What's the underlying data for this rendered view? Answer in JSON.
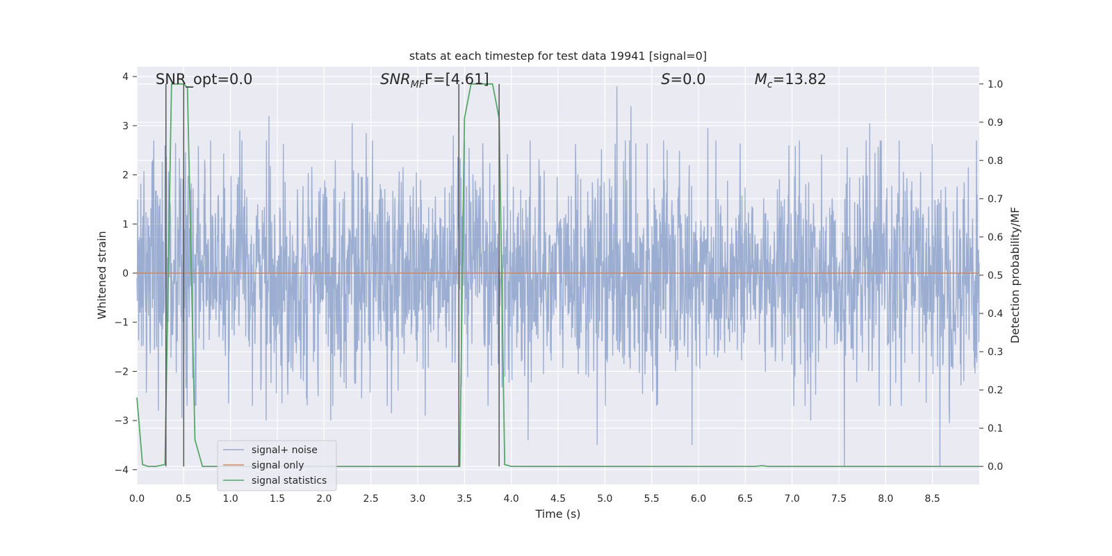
{
  "chart_data": {
    "type": "line",
    "title": "stats at each timestep for test data 19941 [signal=0]",
    "xlabel": "Time (s)",
    "ylabel": "Whitened strain",
    "y2label": "Detection probability/MF",
    "xlim": [
      0,
      9.0
    ],
    "ylim": [
      -4.3,
      4.2
    ],
    "y2lim": [
      -0.047,
      1.045
    ],
    "x_ticks": [
      "0.0",
      "0.5",
      "1.0",
      "1.5",
      "2.0",
      "2.5",
      "3.0",
      "3.5",
      "4.0",
      "4.5",
      "5.0",
      "5.5",
      "6.0",
      "6.5",
      "7.0",
      "7.5",
      "8.0",
      "8.5"
    ],
    "y_ticks": [
      "4",
      "3",
      "2",
      "1",
      "0",
      "−1",
      "−2",
      "−3",
      "−4"
    ],
    "y2_ticks": [
      "1.0",
      "0.9",
      "0.8",
      "0.7",
      "0.6",
      "0.5",
      "0.4",
      "0.3",
      "0.2",
      "0.1",
      "0.0"
    ],
    "grid": true,
    "legend_position": "lower-left",
    "annotations": [
      {
        "id": "snr-opt",
        "text": "SNR_opt=0.0",
        "x": 0.2
      },
      {
        "id": "snr-mf",
        "base": "SNR",
        "sub": "MF",
        "rest": "F=[4.61]",
        "x": 2.6
      },
      {
        "id": "s-val",
        "base": "S",
        "rest": "=0.0",
        "x": 5.6
      },
      {
        "id": "mc-val",
        "base": "M",
        "sub": "c",
        "rest": "=13.82",
        "x": 6.6
      }
    ],
    "series": [
      {
        "name": "signal+ noise",
        "color": "#4c72b0",
        "axis": "left",
        "style": "noise",
        "seed": 19941,
        "spikes": [
          {
            "x": 0.17,
            "y": 2.3
          },
          {
            "x": 0.23,
            "y": -2.8
          },
          {
            "x": 0.3,
            "y": 2.6
          },
          {
            "x": 0.48,
            "y": -2.95
          },
          {
            "x": 0.98,
            "y": -2.65
          },
          {
            "x": 1.1,
            "y": 2.9
          },
          {
            "x": 1.38,
            "y": -3.0
          },
          {
            "x": 1.41,
            "y": 3.2
          },
          {
            "x": 1.55,
            "y": -2.65
          },
          {
            "x": 2.07,
            "y": -3.0
          },
          {
            "x": 2.3,
            "y": 3.05
          },
          {
            "x": 2.45,
            "y": 2.85
          },
          {
            "x": 2.72,
            "y": -2.85
          },
          {
            "x": 3.08,
            "y": -2.9
          },
          {
            "x": 3.38,
            "y": 2.8
          },
          {
            "x": 4.18,
            "y": -3.4
          },
          {
            "x": 4.92,
            "y": -3.5
          },
          {
            "x": 5.13,
            "y": 3.8
          },
          {
            "x": 5.28,
            "y": 3.4
          },
          {
            "x": 5.93,
            "y": -3.5
          },
          {
            "x": 6.1,
            "y": 2.95
          },
          {
            "x": 7.2,
            "y": -3.0
          },
          {
            "x": 7.56,
            "y": -3.95
          },
          {
            "x": 7.83,
            "y": 3.05
          },
          {
            "x": 8.58,
            "y": -3.95
          },
          {
            "x": 8.68,
            "y": -3.05
          },
          {
            "x": 8.97,
            "y": 2.7
          }
        ]
      },
      {
        "name": "signal only",
        "color": "#dd8452",
        "axis": "left",
        "x": [
          0.0,
          9.0
        ],
        "values": [
          0.0,
          0.0
        ]
      },
      {
        "name": "signal statistics",
        "color": "#55a868",
        "axis": "right",
        "x": [
          0.0,
          0.06,
          0.12,
          0.2,
          0.3,
          0.37,
          0.4,
          0.5,
          0.54,
          0.62,
          0.7,
          1.0,
          2.0,
          3.0,
          3.45,
          3.5,
          3.57,
          3.8,
          3.87,
          3.93,
          4.0,
          5.0,
          6.0,
          6.6,
          6.68,
          6.75,
          7.0,
          8.0,
          9.0
        ],
        "values": [
          0.18,
          0.005,
          0.0,
          0.0,
          0.005,
          1.0,
          1.0,
          1.0,
          0.99,
          0.07,
          0.0,
          0.0,
          0.0,
          0.0,
          0.0,
          0.91,
          1.0,
          1.0,
          0.91,
          0.005,
          0.0,
          0.0,
          0.0,
          0.0,
          0.002,
          0.0,
          0.0,
          0.0,
          0.0
        ]
      }
    ],
    "vertical_lines": [
      0.31,
      0.5,
      3.44,
      3.87
    ]
  }
}
